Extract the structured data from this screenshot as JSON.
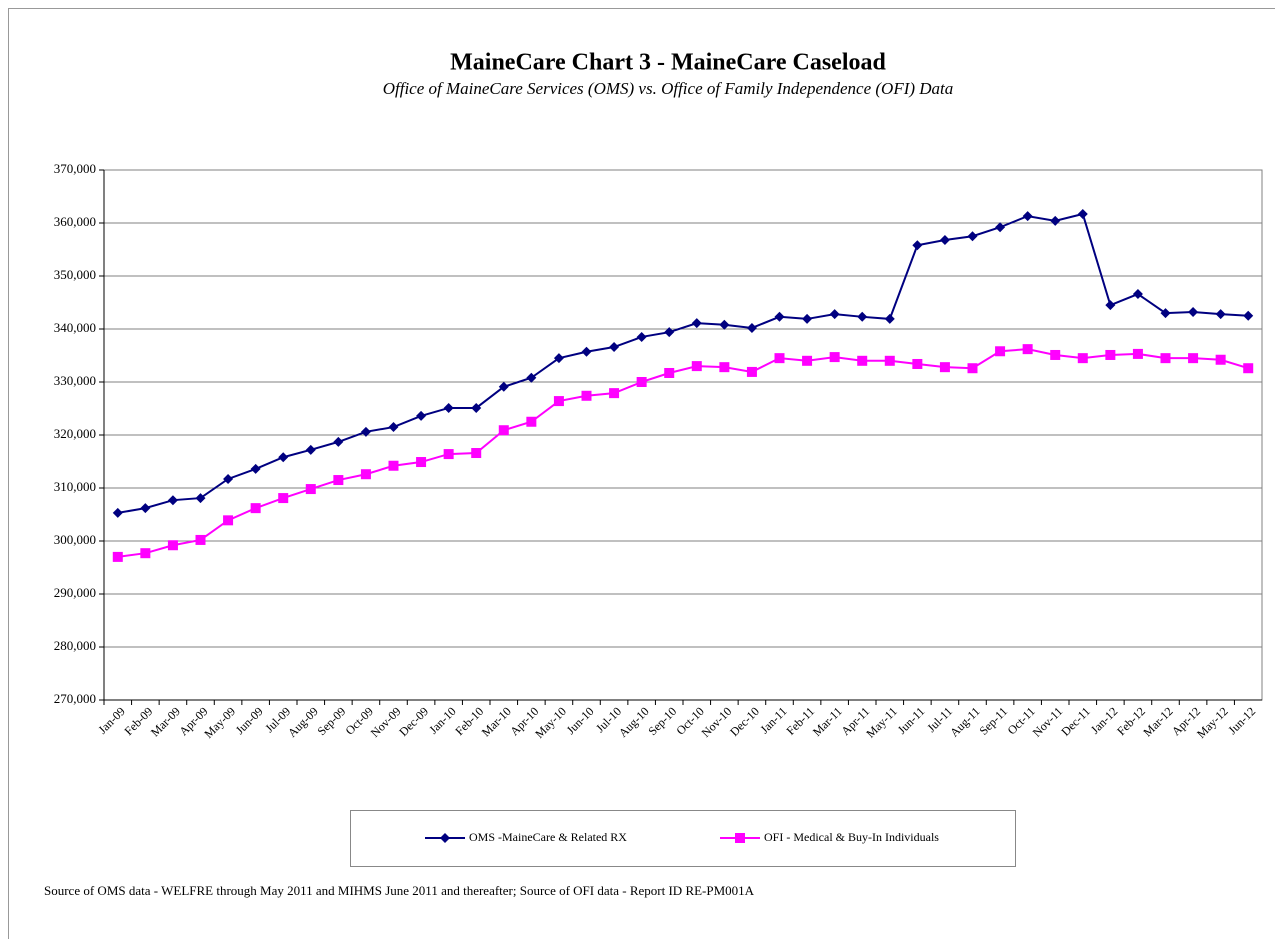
{
  "chart_data": {
    "type": "line",
    "title": "MaineCare Chart 3 - MaineCare Caseload",
    "subtitle": "Office of MaineCare Services (OMS) vs. Office of Family Independence (OFI) Data",
    "footnote": "Source of OMS data - WELFRE through May 2011 and MIHMS June 2011 and thereafter;  Source of  OFI data - Report ID RE-PM001A",
    "categories": [
      "Jan-09",
      "Feb-09",
      "Mar-09",
      "Apr-09",
      "May-09",
      "Jun-09",
      "Jul-09",
      "Aug-09",
      "Sep-09",
      "Oct-09",
      "Nov-09",
      "Dec-09",
      "Jan-10",
      "Feb-10",
      "Mar-10",
      "Apr-10",
      "May-10",
      "Jun-10",
      "Jul-10",
      "Aug-10",
      "Sep-10",
      "Oct-10",
      "Nov-10",
      "Dec-10",
      "Jan-11",
      "Feb-11",
      "Mar-11",
      "Apr-11",
      "May-11",
      "Jun-11",
      "Jul-11",
      "Aug-11",
      "Sep-11",
      "Oct-11",
      "Nov-11",
      "Dec-11",
      "Jan-12",
      "Feb-12",
      "Mar-12",
      "Apr-12",
      "May-12",
      "Jun-12"
    ],
    "series": [
      {
        "name": "OMS  -MaineCare & Related RX",
        "color": "#000080",
        "marker": "diamond",
        "values": [
          305300,
          306200,
          307700,
          308100,
          311700,
          313600,
          315800,
          317200,
          318700,
          320600,
          321500,
          323600,
          325100,
          325100,
          329100,
          330800,
          334500,
          335700,
          336600,
          338500,
          339400,
          341100,
          340800,
          340200,
          342300,
          341900,
          342800,
          342300,
          341900,
          355800,
          356800,
          357500,
          359200,
          361300,
          360400,
          361700,
          344500,
          346600,
          343000,
          343200,
          342800,
          342500
        ]
      },
      {
        "name": "OFI - Medical & Buy-In Individuals",
        "color": "#ff00ff",
        "marker": "square",
        "values": [
          297000,
          297700,
          299200,
          300200,
          303900,
          306200,
          308100,
          309800,
          311500,
          312600,
          314200,
          314900,
          316400,
          316600,
          320900,
          322500,
          326400,
          327400,
          327900,
          330000,
          331700,
          333000,
          332800,
          331900,
          334500,
          334000,
          334700,
          334000,
          334000,
          333400,
          332800,
          332600,
          335800,
          336200,
          335100,
          334500,
          335100,
          335300,
          334500,
          334500,
          334200,
          332600
        ]
      }
    ],
    "ylim": [
      270000,
      370000
    ],
    "yticks": [
      {
        "value": 270000,
        "label": "270,000"
      },
      {
        "value": 280000,
        "label": "280,000"
      },
      {
        "value": 290000,
        "label": "290,000"
      },
      {
        "value": 300000,
        "label": "300,000"
      },
      {
        "value": 310000,
        "label": "310,000"
      },
      {
        "value": 320000,
        "label": "320,000"
      },
      {
        "value": 330000,
        "label": "330,000"
      },
      {
        "value": 340000,
        "label": "340,000"
      },
      {
        "value": 350000,
        "label": "350,000"
      },
      {
        "value": 360000,
        "label": "360,000"
      },
      {
        "value": 370000,
        "label": "370,000"
      }
    ],
    "grid": true
  }
}
